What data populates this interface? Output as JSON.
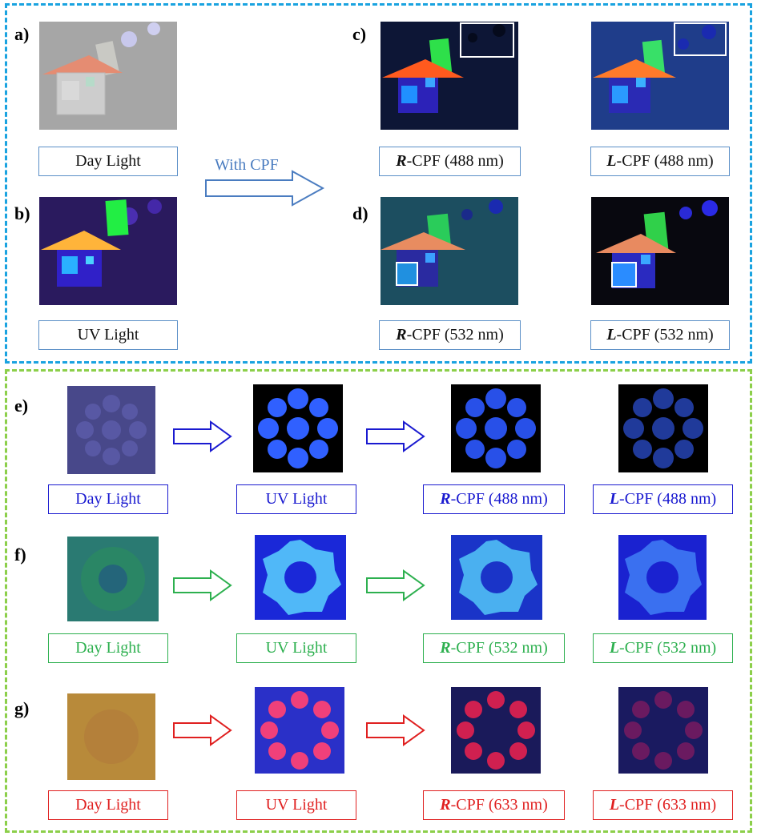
{
  "top": {
    "panels": {
      "a": "a)",
      "b": "b)",
      "c": "c)",
      "d": "d)"
    },
    "captions": {
      "a": {
        "text": "Day Light"
      },
      "b": {
        "text": "UV Light"
      },
      "c1": {
        "prefix": "R",
        "suffix": "-CPF (488 nm)"
      },
      "c2": {
        "prefix": "L",
        "suffix": "-CPF (488 nm)"
      },
      "d1": {
        "prefix": "R",
        "suffix": "-CPF (532 nm)"
      },
      "d2": {
        "prefix": "L",
        "suffix": "-CPF (532 nm)"
      }
    },
    "arrow_label": "With CPF"
  },
  "bottom": {
    "panels": {
      "e": "e)",
      "f": "f)",
      "g": "g)"
    },
    "rows": [
      {
        "key": "e",
        "captions": [
          {
            "text": "Day Light"
          },
          {
            "text": "UV Light"
          },
          {
            "prefix": "R",
            "suffix": "-CPF (488 nm)"
          },
          {
            "prefix": "L",
            "suffix": "-CPF (488 nm)"
          }
        ]
      },
      {
        "key": "f",
        "captions": [
          {
            "text": "Day Light"
          },
          {
            "text": "UV Light"
          },
          {
            "prefix": "R",
            "suffix": "-CPF (532 nm)"
          },
          {
            "prefix": "L",
            "suffix": "-CPF (532 nm)"
          }
        ]
      },
      {
        "key": "g",
        "captions": [
          {
            "text": "Day Light"
          },
          {
            "text": "UV Light"
          },
          {
            "prefix": "R",
            "suffix": "-CPF (633 nm)"
          },
          {
            "prefix": "L",
            "suffix": "-CPF (633 nm)"
          }
        ]
      }
    ]
  },
  "colors": {
    "top_frame": "#1aa3e0",
    "bottom_frame": "#8ccf4a",
    "caption_top": "#5b8fc7",
    "row_e": "#1a1ad0",
    "row_f": "#2db04f",
    "row_g": "#e02020"
  }
}
